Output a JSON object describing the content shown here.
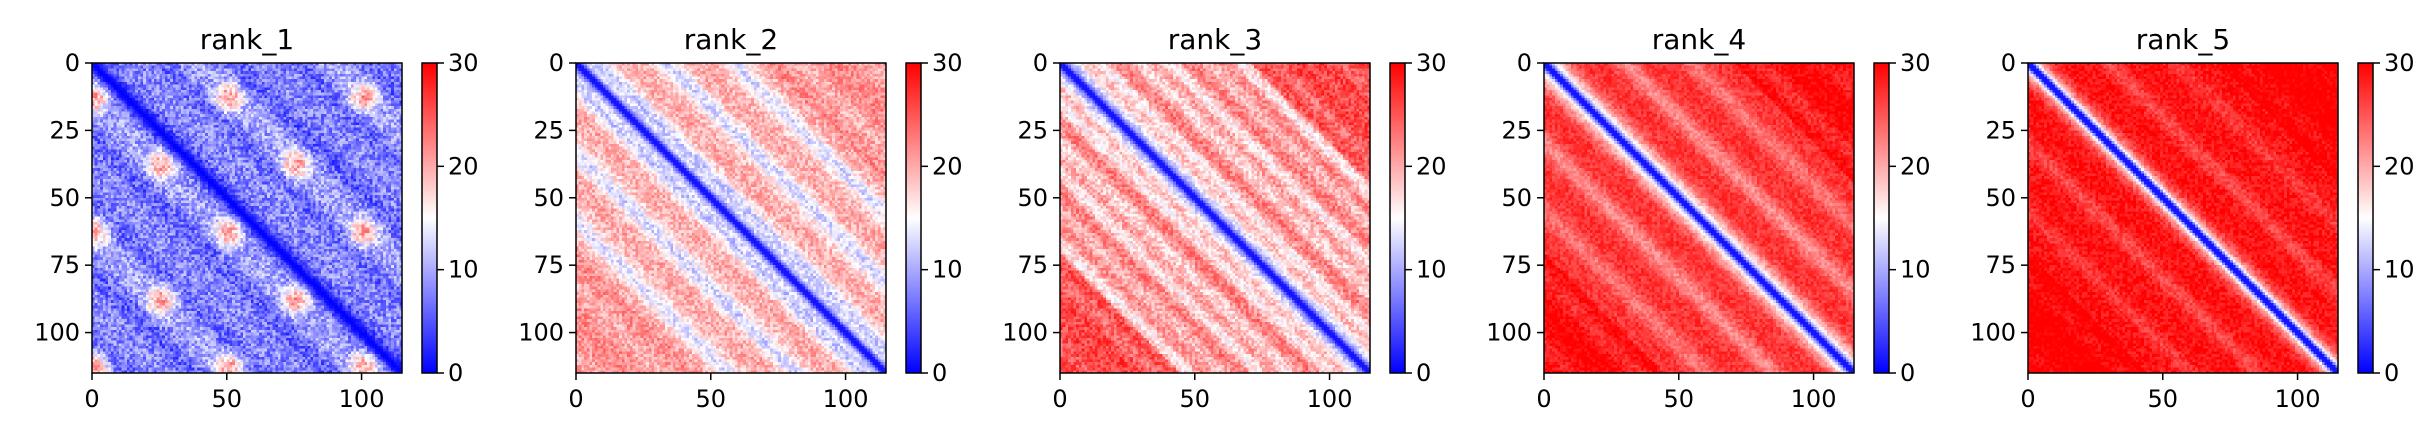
{
  "chart_data": [
    {
      "type": "heatmap",
      "title": "rank_1",
      "xlim": [
        0,
        115
      ],
      "ylim": [
        115,
        0
      ],
      "xticks": [
        "0",
        "50",
        "100"
      ],
      "yticks": [
        "0",
        "25",
        "50",
        "75",
        "100"
      ],
      "colorbar": {
        "ticks": [
          "0",
          "10",
          "20",
          "30"
        ],
        "range": [
          0,
          30
        ],
        "cmap": "bwr"
      },
      "pattern": {
        "diag": 0,
        "off": 10,
        "noise": 4,
        "period": 25,
        "band_center": 27,
        "band_width": 3.8,
        "wave_amp": 6,
        "texture": 4,
        "edge_boost": 0
      }
    },
    {
      "type": "heatmap",
      "title": "rank_2",
      "xlim": [
        0,
        115
      ],
      "ylim": [
        115,
        0
      ],
      "xticks": [
        "0",
        "50",
        "100"
      ],
      "yticks": [
        "0",
        "25",
        "50",
        "75",
        "100"
      ],
      "colorbar": {
        "ticks": [
          "0",
          "10",
          "20",
          "30"
        ],
        "range": [
          0,
          30
        ],
        "cmap": "bwr"
      },
      "pattern": {
        "diag": 1,
        "off": 20,
        "noise": 3,
        "period": 25,
        "band_center": 6,
        "band_width": 4.5,
        "wave_amp": 3,
        "texture": 3,
        "edge_boost": 2
      }
    },
    {
      "type": "heatmap",
      "title": "rank_3",
      "xlim": [
        0,
        115
      ],
      "ylim": [
        115,
        0
      ],
      "xticks": [
        "0",
        "50",
        "100"
      ],
      "yticks": [
        "0",
        "25",
        "50",
        "75",
        "100"
      ],
      "colorbar": {
        "ticks": [
          "0",
          "10",
          "20",
          "30"
        ],
        "range": [
          0,
          30
        ],
        "cmap": "bwr"
      },
      "pattern": {
        "diag": 1,
        "off": 24,
        "noise": 3,
        "period": 25,
        "band_center": 5,
        "band_width": 3.5,
        "wave_amp": 10,
        "texture": 3,
        "edge_boost": 3
      }
    },
    {
      "type": "heatmap",
      "title": "rank_4",
      "xlim": [
        0,
        115
      ],
      "ylim": [
        115,
        0
      ],
      "xticks": [
        "0",
        "50",
        "100"
      ],
      "yticks": [
        "0",
        "25",
        "50",
        "75",
        "100"
      ],
      "colorbar": {
        "ticks": [
          "0",
          "10",
          "20",
          "30"
        ],
        "range": [
          0,
          30
        ],
        "cmap": "bwr"
      },
      "pattern": {
        "diag": 1,
        "off": 27,
        "noise": 2,
        "period": 25,
        "band_center": 5,
        "band_width": 3.5,
        "wave_amp": 8,
        "texture": 2,
        "edge_boost": 3
      }
    },
    {
      "type": "heatmap",
      "title": "rank_5",
      "xlim": [
        0,
        115
      ],
      "ylim": [
        115,
        0
      ],
      "xticks": [
        "0",
        "50",
        "100"
      ],
      "yticks": [
        "0",
        "25",
        "50",
        "75",
        "100"
      ],
      "colorbar": {
        "ticks": [
          "0",
          "10",
          "20",
          "30"
        ],
        "range": [
          0,
          30
        ],
        "cmap": "bwr"
      },
      "pattern": {
        "diag": 1,
        "off": 29,
        "noise": 2,
        "period": 25,
        "band_center": 5,
        "band_width": 3,
        "wave_amp": 5,
        "texture": 2,
        "edge_boost": 2
      }
    }
  ]
}
